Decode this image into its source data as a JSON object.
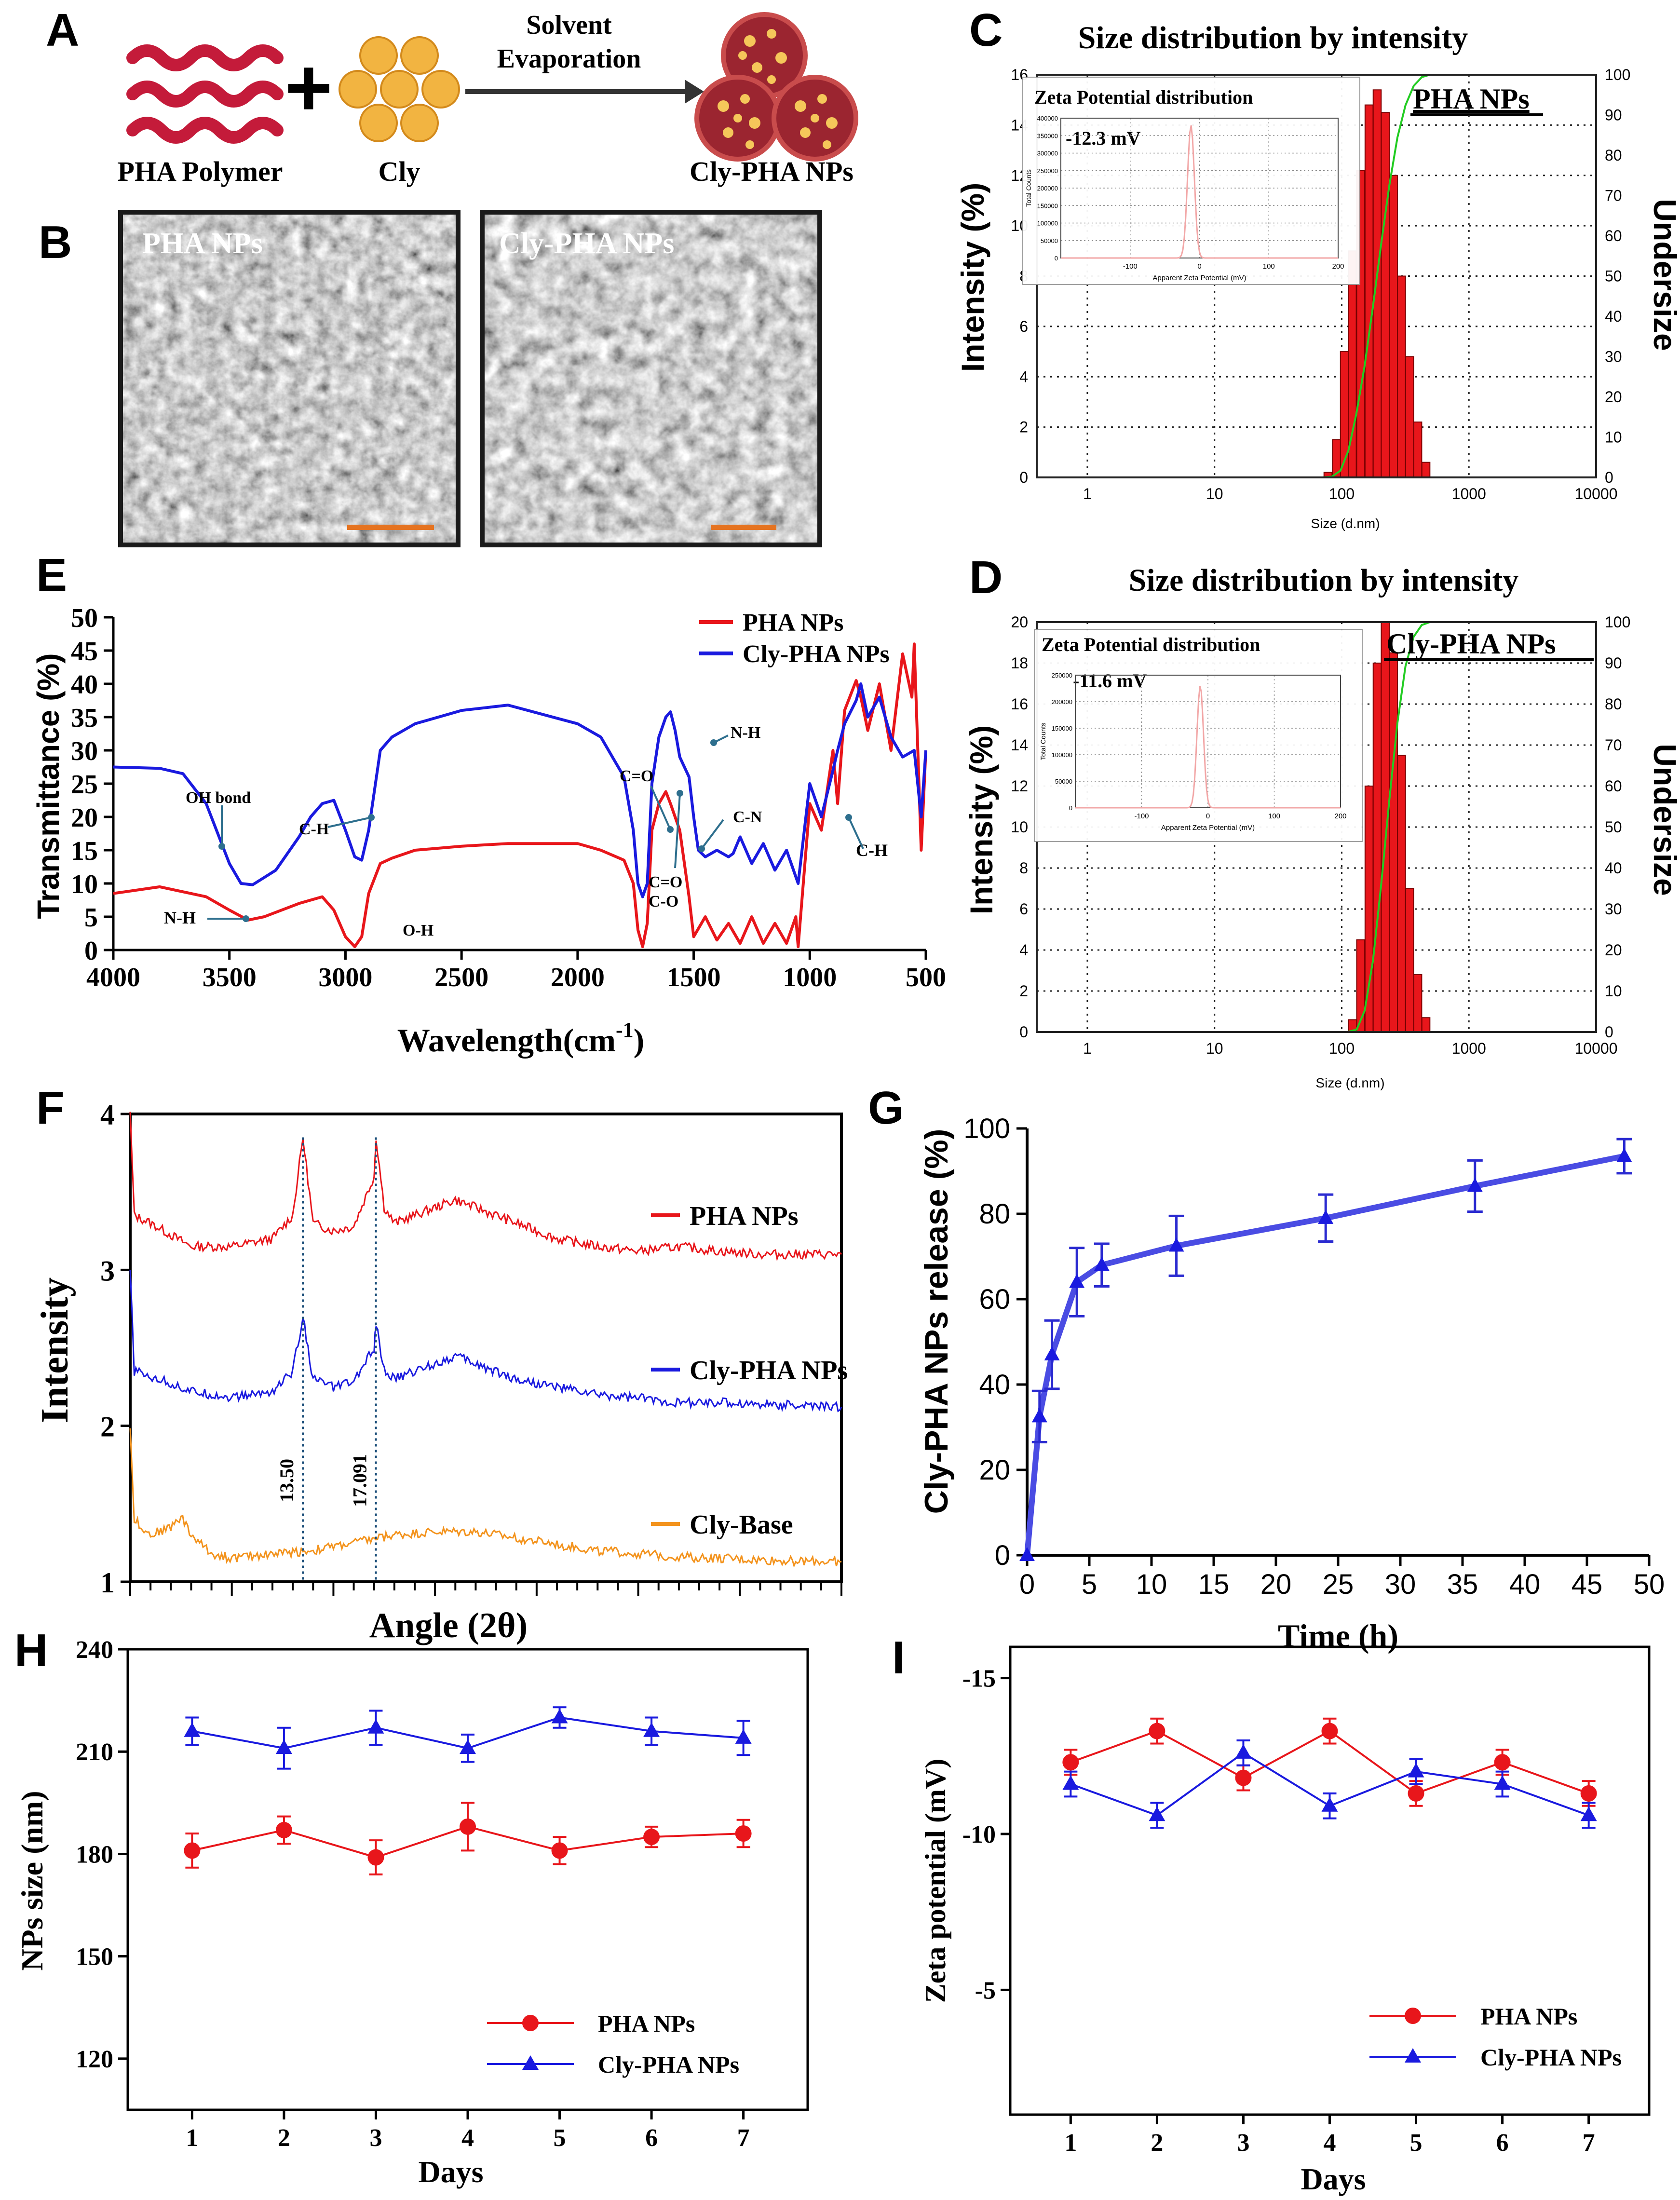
{
  "colors": {
    "pha": "#e8161b",
    "cly": "#1a1adf",
    "base": "#f3931d",
    "hist": "#e8161b",
    "cumul": "#22cc22",
    "zeta": "#f2a7a7",
    "arrow": "#2e6f8e",
    "scalebar": "#e57320",
    "polymer": "#c41b3a",
    "particle": "#f2b441",
    "np": "#9b2530"
  },
  "panelA": {
    "letter": "A",
    "polymer_label": "PHA Polymer",
    "plus": "+",
    "drug_label": "Cly",
    "arrow_label_1": "Solvent",
    "arrow_label_2": "Evaporation",
    "product_label": "Cly-PHA NPs"
  },
  "panelB": {
    "letter": "B",
    "img1_label": "PHA NPs",
    "img2_label": "Cly-PHA NPs",
    "scalebar_color": "#e57320"
  },
  "panelC": {
    "letter": "C",
    "title": "Size distribution by intensity",
    "sample_label": "PHA NPs",
    "ylabel": "Intensity (%)",
    "ylabel_right": "Undersize",
    "xlabel": "Size (d.nm)",
    "inset_title": "Zeta Potential distribution",
    "inset_value": "-12.3 mV",
    "inset_ylabel": "Total Counts",
    "inset_xlabel": "Apparent Zeta Potential (mV)"
  },
  "panelD": {
    "letter": "D",
    "title": "Size distribution by intensity",
    "sample_label": "Cly-PHA NPs",
    "ylabel": "Intensity (%)",
    "ylabel_right": "Undersize",
    "xlabel": "Size (d.nm)",
    "inset_title": "Zeta Potential distribution",
    "inset_value": "-11.6 mV",
    "inset_ylabel": "Total Counts",
    "inset_xlabel": "Apparent Zeta Potential (mV)"
  },
  "panelE": {
    "letter": "E",
    "ylabel": "Transmittance (%)",
    "xlabel": "Wavelength(cm",
    "xlabel_sup": "-1",
    "xlabel_end": ")",
    "annotations": [
      "OH bond",
      "C-H",
      "N-H",
      "O-H",
      "C=O",
      "C=O",
      "C-O",
      "C-N",
      "N-H",
      "C-H"
    ]
  },
  "panelF": {
    "letter": "F",
    "ylabel": "Intensity",
    "xlabel": "Angle (2θ)",
    "peak1": "13.50",
    "peak2": "17.091"
  },
  "panelG": {
    "letter": "G",
    "ylabel": "Cly-PHA NPs release (%)",
    "xlabel": "Time (h)"
  },
  "panelH": {
    "letter": "H",
    "ylabel": "NPs size (nm)",
    "xlabel": "Days"
  },
  "panelI": {
    "letter": "I",
    "ylabel": "Zeta potential (mV)",
    "xlabel": "Days"
  },
  "chart_data": [
    {
      "panel": "C",
      "type": "bar",
      "title": "Size distribution by intensity",
      "xlabel": "Size (d.nm)",
      "ylabel": "Intensity (%)",
      "y2label": "Undersize",
      "x_scale": "log",
      "xlim": [
        0.4,
        10000
      ],
      "ylim": [
        0,
        16
      ],
      "y2lim": [
        0,
        100
      ],
      "x_ticks": [
        "1",
        "10",
        "100",
        "1000",
        "10000"
      ],
      "y_ticks": [
        "0",
        "2",
        "4",
        "6",
        "8",
        "10",
        "12",
        "14",
        "16"
      ],
      "y2_ticks": [
        "0",
        "10",
        "20",
        "30",
        "40",
        "50",
        "60",
        "70",
        "80",
        "90",
        "100"
      ],
      "series": [
        {
          "name": "PHA NPs",
          "x": [
            78,
            91,
            105,
            121,
            141,
            164,
            190,
            220,
            255,
            295,
            342,
            396,
            459
          ],
          "values": [
            0.2,
            1.5,
            5.0,
            9.0,
            12.2,
            14.8,
            15.4,
            14.5,
            12.0,
            8.0,
            4.8,
            2.2,
            0.6
          ]
        }
      ],
      "inset": {
        "type": "line",
        "title": "Zeta Potential distribution",
        "value_label": "-12.3 mV",
        "xlim": [
          -200,
          200
        ],
        "ylim": [
          0,
          400000
        ],
        "x_ticks": [
          "-100",
          "0",
          "100",
          "200"
        ],
        "y_ticks": [
          "0",
          "50000",
          "100000",
          "150000",
          "200000",
          "250000",
          "300000",
          "350000",
          "400000"
        ],
        "peak_x": -12.3,
        "peak_y": 380000
      }
    },
    {
      "panel": "D",
      "type": "bar",
      "title": "Size distribution by intensity",
      "xlabel": "Size (d.nm)",
      "ylabel": "Intensity (%)",
      "y2label": "Undersize",
      "x_scale": "log",
      "xlim": [
        0.4,
        10000
      ],
      "ylim": [
        0,
        20
      ],
      "y2lim": [
        0,
        100
      ],
      "x_ticks": [
        "1",
        "10",
        "100",
        "1000",
        "10000"
      ],
      "y_ticks": [
        "0",
        "2",
        "4",
        "6",
        "8",
        "10",
        "12",
        "14",
        "16",
        "18",
        "20"
      ],
      "y2_ticks": [
        "0",
        "10",
        "20",
        "30",
        "40",
        "50",
        "60",
        "70",
        "80",
        "90",
        "100"
      ],
      "series": [
        {
          "name": "Cly-PHA NPs",
          "x": [
            122,
            141,
            164,
            190,
            220,
            255,
            295,
            342,
            396,
            459
          ],
          "values": [
            0.6,
            4.5,
            12.0,
            18.0,
            20.0,
            18.5,
            13.5,
            7.0,
            2.8,
            0.7
          ]
        }
      ],
      "inset": {
        "type": "line",
        "title": "Zeta Potential distribution",
        "value_label": "-11.6 mV",
        "xlim": [
          -200,
          200
        ],
        "ylim": [
          0,
          250000
        ],
        "x_ticks": [
          "-100",
          "0",
          "100",
          "200"
        ],
        "y_ticks": [
          "0",
          "50000",
          "100000",
          "150000",
          "200000",
          "250000"
        ],
        "peak_x": -11.6,
        "peak_y": 230000
      }
    },
    {
      "panel": "E",
      "type": "line",
      "xlabel": "Wavelength(cm-1)",
      "ylabel": "Transmittance (%)",
      "xlim": [
        4000,
        500
      ],
      "ylim": [
        0,
        50
      ],
      "x_ticks": [
        "4000",
        "3500",
        "3000",
        "2500",
        "2000",
        "1500",
        "1000",
        "500"
      ],
      "y_ticks": [
        "0",
        "5",
        "10",
        "15",
        "20",
        "25",
        "30",
        "35",
        "40",
        "45",
        "50"
      ],
      "legend_position": "top-right",
      "series": [
        {
          "name": "PHA NPs",
          "x": [
            4000,
            3800,
            3600,
            3500,
            3420,
            3350,
            3200,
            3100,
            3050,
            3000,
            2960,
            2930,
            2900,
            2850,
            2800,
            2700,
            2500,
            2300,
            2000,
            1900,
            1800,
            1760,
            1740,
            1720,
            1700,
            1680,
            1650,
            1620,
            1600,
            1560,
            1520,
            1500,
            1450,
            1400,
            1350,
            1300,
            1250,
            1200,
            1150,
            1100,
            1060,
            1050,
            1000,
            950,
            900,
            880,
            850,
            800,
            780,
            750,
            700,
            650,
            600,
            560,
            550,
            520,
            500
          ],
          "values": [
            8.5,
            9.5,
            8.0,
            6.0,
            4.5,
            5.0,
            7.0,
            8.0,
            6.0,
            2.0,
            0.5,
            2.0,
            8.5,
            13.0,
            13.8,
            15.0,
            15.6,
            16.0,
            16.0,
            15.0,
            13.5,
            10.0,
            3.0,
            0.5,
            4.0,
            18.0,
            22.0,
            23.8,
            22.0,
            18.0,
            8.0,
            2.0,
            5.0,
            1.5,
            4.0,
            1.0,
            5.0,
            1.0,
            4.0,
            1.0,
            5.0,
            0.5,
            22.0,
            18.0,
            30.0,
            22.0,
            36.0,
            40.5,
            38.0,
            33.0,
            40.0,
            30.0,
            44.5,
            38.0,
            46.0,
            15.0,
            30.0
          ]
        },
        {
          "name": "Cly-PHA NPs",
          "x": [
            4000,
            3800,
            3700,
            3600,
            3500,
            3450,
            3400,
            3300,
            3200,
            3150,
            3100,
            3050,
            3000,
            2960,
            2930,
            2900,
            2850,
            2800,
            2700,
            2500,
            2300,
            2000,
            1900,
            1800,
            1760,
            1740,
            1720,
            1700,
            1680,
            1650,
            1620,
            1600,
            1580,
            1560,
            1520,
            1500,
            1480,
            1450,
            1400,
            1350,
            1330,
            1300,
            1250,
            1200,
            1150,
            1100,
            1060,
            1050,
            1000,
            950,
            900,
            880,
            850,
            800,
            780,
            750,
            700,
            650,
            600,
            550,
            520,
            500
          ],
          "values": [
            27.5,
            27.3,
            26.5,
            22.0,
            13.0,
            10.0,
            9.8,
            12.0,
            17.0,
            20.0,
            22.0,
            22.5,
            18.0,
            14.0,
            13.5,
            18.0,
            30.0,
            32.0,
            34.0,
            36.0,
            36.8,
            34.0,
            32.0,
            26.0,
            18.0,
            10.0,
            8.0,
            10.0,
            25.0,
            32.0,
            35.0,
            35.8,
            33.0,
            29.0,
            26.0,
            20.0,
            15.0,
            14.0,
            15.0,
            14.0,
            14.5,
            17.0,
            13.0,
            16.0,
            12.0,
            15.0,
            11.0,
            10.0,
            25.0,
            20.0,
            27.0,
            30.0,
            34.0,
            37.5,
            40.0,
            35.0,
            38.0,
            32.0,
            29.0,
            30.0,
            20.0,
            30.0
          ]
        }
      ]
    },
    {
      "panel": "F",
      "type": "line",
      "xlabel": "Angle (2θ)",
      "ylabel": "Intensity",
      "xlim": [
        5,
        40
      ],
      "ylim": [
        1,
        4
      ],
      "y_ticks": [
        "1",
        "2",
        "3",
        "4"
      ],
      "x_tick_labels": "none",
      "legend_position": "right",
      "series": [
        {
          "name": "PHA NPs",
          "x": [
            5,
            5.2,
            6,
            8,
            10,
            12,
            13,
            13.5,
            14,
            15,
            16,
            17,
            17.1,
            17.5,
            18,
            19,
            20,
            21,
            22,
            24,
            26,
            28,
            30,
            32,
            34,
            36,
            38,
            40
          ],
          "values": [
            4.0,
            3.35,
            3.3,
            3.15,
            3.15,
            3.2,
            3.35,
            3.85,
            3.3,
            3.25,
            3.28,
            3.6,
            3.85,
            3.4,
            3.3,
            3.35,
            3.4,
            3.45,
            3.4,
            3.3,
            3.2,
            3.15,
            3.12,
            3.15,
            3.12,
            3.1,
            3.1,
            3.1
          ]
        },
        {
          "name": "Cly-PHA NPs",
          "x": [
            5,
            5.2,
            6,
            8,
            10,
            12,
            13,
            13.5,
            14,
            15,
            16,
            17,
            17.1,
            17.5,
            18,
            19,
            20,
            21,
            22,
            24,
            26,
            28,
            30,
            32,
            34,
            36,
            38,
            40
          ],
          "values": [
            3.0,
            2.35,
            2.32,
            2.22,
            2.18,
            2.22,
            2.35,
            2.7,
            2.3,
            2.25,
            2.28,
            2.5,
            2.65,
            2.35,
            2.3,
            2.35,
            2.4,
            2.45,
            2.4,
            2.3,
            2.25,
            2.2,
            2.18,
            2.15,
            2.15,
            2.14,
            2.13,
            2.12
          ]
        },
        {
          "name": "Cly-Base",
          "x": [
            5,
            5.2,
            6,
            7,
            7.5,
            8,
            9,
            10,
            12,
            14,
            16,
            18,
            20,
            22,
            24,
            26,
            28,
            30,
            32,
            34,
            36,
            38,
            40
          ],
          "values": [
            2.0,
            1.4,
            1.3,
            1.35,
            1.42,
            1.3,
            1.18,
            1.15,
            1.18,
            1.2,
            1.25,
            1.3,
            1.32,
            1.32,
            1.28,
            1.24,
            1.2,
            1.18,
            1.16,
            1.15,
            1.14,
            1.13,
            1.13
          ]
        }
      ]
    },
    {
      "panel": "G",
      "type": "line",
      "xlabel": "Time (h)",
      "ylabel": "Cly-PHA NPs release (%)",
      "xlim": [
        0,
        50
      ],
      "ylim": [
        0,
        100
      ],
      "x_ticks": [
        "0",
        "5",
        "10",
        "15",
        "20",
        "25",
        "30",
        "35",
        "40",
        "45",
        "50"
      ],
      "y_ticks": [
        "0",
        "20",
        "40",
        "60",
        "80",
        "100"
      ],
      "series": [
        {
          "name": "Cly-PHA NPs",
          "x": [
            0,
            1,
            2,
            4,
            6,
            12,
            24,
            36,
            48
          ],
          "values": [
            0,
            32.5,
            47,
            64,
            68,
            72.5,
            79,
            86.5,
            93.5
          ],
          "errors": [
            0,
            6,
            8,
            8,
            5,
            7,
            5.5,
            6,
            4
          ]
        }
      ]
    },
    {
      "panel": "H",
      "type": "line",
      "xlabel": "Days",
      "ylabel": "NPs size (nm)",
      "xlim": [
        0.3,
        7.7
      ],
      "ylim": [
        105,
        240
      ],
      "x_ticks": [
        "1",
        "2",
        "3",
        "4",
        "5",
        "6",
        "7"
      ],
      "y_ticks": [
        "120",
        "150",
        "180",
        "210",
        "240"
      ],
      "legend_position": "bottom-right",
      "series": [
        {
          "name": "PHA NPs",
          "x": [
            1,
            2,
            3,
            4,
            5,
            6,
            7
          ],
          "values": [
            181,
            187,
            179,
            188,
            181,
            185,
            186
          ],
          "errors": [
            5,
            4,
            5,
            7,
            4,
            3,
            4
          ]
        },
        {
          "name": "Cly-PHA NPs",
          "x": [
            1,
            2,
            3,
            4,
            5,
            6,
            7
          ],
          "values": [
            216,
            211,
            217,
            211,
            220,
            216,
            214
          ],
          "errors": [
            4,
            6,
            5,
            4,
            3,
            4,
            5
          ]
        }
      ]
    },
    {
      "panel": "I",
      "type": "line",
      "xlabel": "Days",
      "ylabel": "Zeta potential (mV)",
      "xlim": [
        0.3,
        7.7
      ],
      "ylim": [
        -1,
        -16
      ],
      "x_ticks": [
        "1",
        "2",
        "3",
        "4",
        "5",
        "6",
        "7"
      ],
      "y_ticks": [
        "-15",
        "-10",
        "-5"
      ],
      "legend_position": "bottom-right",
      "series": [
        {
          "name": "PHA NPs",
          "x": [
            1,
            2,
            3,
            4,
            5,
            6,
            7
          ],
          "values": [
            -12.3,
            -13.3,
            -11.8,
            -13.3,
            -11.3,
            -12.3,
            -11.3
          ],
          "errors": [
            0.4,
            0.4,
            0.4,
            0.4,
            0.4,
            0.4,
            0.4
          ]
        },
        {
          "name": "Cly-PHA NPs",
          "x": [
            1,
            2,
            3,
            4,
            5,
            6,
            7
          ],
          "values": [
            -11.6,
            -10.6,
            -12.6,
            -10.9,
            -12.0,
            -11.6,
            -10.6
          ],
          "errors": [
            0.4,
            0.4,
            0.4,
            0.4,
            0.4,
            0.4,
            0.4
          ]
        }
      ]
    }
  ]
}
